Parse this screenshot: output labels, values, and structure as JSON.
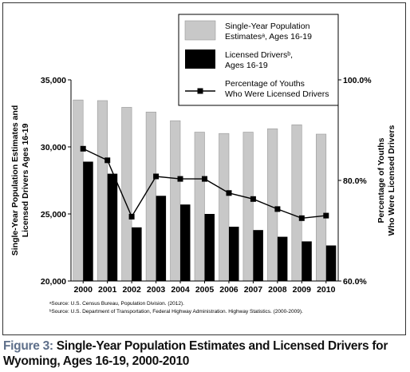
{
  "caption": {
    "label": "Figure 3:",
    "text": " Single-Year Population Estimates and Licensed Drivers for Wyoming, Ages 16-19, 2000-2010"
  },
  "chart_data": {
    "type": "bar",
    "categories": [
      "2000",
      "2001",
      "2002",
      "2003",
      "2004",
      "2005",
      "2006",
      "2007",
      "2008",
      "2009",
      "2010"
    ],
    "series": [
      {
        "name": "Single-Year Population Estimatesᵃ, Ages 16-19",
        "kind": "bar",
        "axis": "left",
        "color": "#c8c8c8",
        "values": [
          33500,
          33450,
          32950,
          32600,
          31950,
          31100,
          31000,
          31100,
          31350,
          31650,
          30950
        ]
      },
      {
        "name": "Licensed Driversᵇ, Ages 16-19",
        "kind": "bar",
        "axis": "left",
        "color": "#000000",
        "values": [
          28900,
          28000,
          24000,
          26350,
          25700,
          25000,
          24050,
          23800,
          23300,
          22950,
          22650
        ]
      },
      {
        "name": "Percentage of Youths Who Were Licensed Drivers",
        "kind": "line",
        "axis": "right",
        "color": "#000000",
        "values": [
          86.3,
          84.0,
          72.8,
          80.8,
          80.3,
          80.3,
          77.5,
          76.3,
          74.3,
          72.5,
          73.0
        ]
      }
    ],
    "legend_entries": [
      [
        "Single-Year Population",
        "Estimatesᵃ, Ages 16-19"
      ],
      [
        "Licensed Driversᵇ,",
        "Ages 16-19"
      ],
      [
        "Percentage of Youths",
        "Who Were Licensed Drivers"
      ]
    ],
    "legend_placement": "top-right",
    "y_left": {
      "label_lines": [
        "Single-Year Population Estimates and",
        "Licensed Drivers Ages 16-19"
      ],
      "lim": [
        20000,
        35000
      ],
      "ticks": [
        20000,
        25000,
        30000,
        35000
      ],
      "tick_labels": [
        "20,000",
        "25,000",
        "30,000",
        "35,000"
      ]
    },
    "y_right": {
      "label_lines": [
        "Percentage of Youths",
        "Who Were Licensed Drivers"
      ],
      "lim": [
        60,
        100
      ],
      "ticks": [
        60,
        80,
        100
      ],
      "tick_labels": [
        "60.0%",
        "80.0%",
        "100.0%"
      ]
    },
    "grid": false,
    "sources": [
      "ᵃSource: U.S. Census Bureau, Population Division. (2012).",
      "ᵇSource: U.S. Department of Transportation, Federal Highway Administration. Highway Statistics. (2000-2009)."
    ]
  }
}
